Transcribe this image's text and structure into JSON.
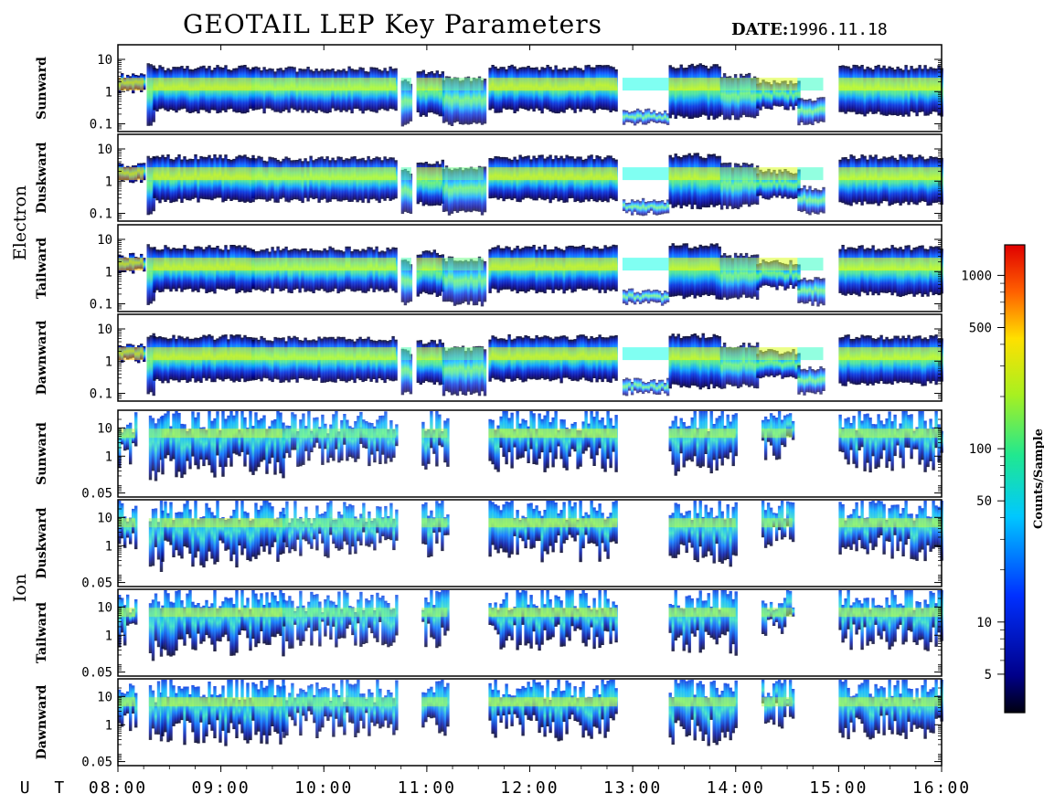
{
  "header": {
    "title": "GEOTAIL LEP Key Parameters",
    "date_label": "DATE:",
    "date_value": "1996.11.18"
  },
  "chart_data": {
    "type": "heatmap",
    "time_axis": {
      "label": "U T",
      "range": [
        "08:00",
        "16:00"
      ],
      "ticks": [
        "08:00",
        "09:00",
        "10:00",
        "11:00",
        "12:00",
        "13:00",
        "14:00",
        "15:00",
        "16:00"
      ]
    },
    "groups": [
      {
        "name": "Electron",
        "y_scale": "log",
        "y_ticks": [
          "10",
          "1",
          "0.1"
        ],
        "panels": [
          "Sunward",
          "Duskward",
          "Tailward",
          "Dawnward"
        ]
      },
      {
        "name": "Ion",
        "y_scale": "log",
        "y_ticks": [
          "10",
          "1",
          "0.05"
        ],
        "panels": [
          "Sunward",
          "Duskward",
          "Tailward",
          "Dawnward"
        ]
      }
    ],
    "colorbar": {
      "label": "Counts/Sample",
      "scale": "log",
      "ticks": [
        "1000",
        "500",
        "100",
        "50",
        "10",
        "5"
      ],
      "range": [
        3,
        1500
      ]
    },
    "electron_activity": [
      {
        "t0": 8.0,
        "t1": 8.25,
        "level": 0.85,
        "band": [
          0.02,
          0.5
        ]
      },
      {
        "t0": 8.28,
        "t1": 8.34,
        "level": 0.55,
        "band": [
          -1,
          0.8
        ]
      },
      {
        "t0": 8.34,
        "t1": 9.3,
        "level": 0.72,
        "band": [
          -0.6,
          0.75
        ]
      },
      {
        "t0": 9.3,
        "t1": 10.7,
        "level": 0.62,
        "band": [
          -0.6,
          0.7
        ]
      },
      {
        "t0": 10.75,
        "t1": 10.85,
        "level": 0.25,
        "band": [
          -1,
          0.3
        ]
      },
      {
        "t0": 10.9,
        "t1": 11.15,
        "level": 0.65,
        "band": [
          -0.7,
          0.6
        ]
      },
      {
        "t0": 11.15,
        "t1": 11.55,
        "level": 0.35,
        "band": [
          -1,
          0.4
        ]
      },
      {
        "t0": 11.6,
        "t1": 12.85,
        "level": 0.72,
        "band": [
          -0.6,
          0.75
        ]
      },
      {
        "t0": 12.9,
        "t1": 13.35,
        "level": 0.12,
        "band": [
          -1,
          -0.6
        ]
      },
      {
        "t0": 13.35,
        "t1": 13.85,
        "level": 0.7,
        "band": [
          -0.8,
          0.8
        ]
      },
      {
        "t0": 13.85,
        "t1": 14.2,
        "level": 0.45,
        "band": [
          -0.8,
          0.5
        ]
      },
      {
        "t0": 14.2,
        "t1": 14.6,
        "level": 0.6,
        "band": [
          -0.5,
          0.3
        ]
      },
      {
        "t0": 14.6,
        "t1": 14.85,
        "level": 0.2,
        "band": [
          -1,
          -0.2
        ]
      },
      {
        "t0": 15.0,
        "t1": 16.0,
        "level": 0.68,
        "band": [
          -0.7,
          0.75
        ]
      }
    ],
    "ion_activity": [
      {
        "t0": 8.0,
        "t1": 8.17,
        "level": 0.55,
        "band": [
          0.0,
          1.2
        ]
      },
      {
        "t0": 8.3,
        "t1": 8.42,
        "level": 0.45,
        "band": [
          -0.5,
          1.2
        ]
      },
      {
        "t0": 8.42,
        "t1": 9.6,
        "level": 0.6,
        "band": [
          -0.3,
          1.3
        ]
      },
      {
        "t0": 9.6,
        "t1": 10.7,
        "level": 0.4,
        "band": [
          0.0,
          1.2
        ]
      },
      {
        "t0": 10.95,
        "t1": 11.2,
        "level": 0.5,
        "band": [
          0.0,
          1.3
        ]
      },
      {
        "t0": 11.6,
        "t1": 12.85,
        "level": 0.6,
        "band": [
          -0.1,
          1.3
        ]
      },
      {
        "t0": 13.35,
        "t1": 14.0,
        "level": 0.55,
        "band": [
          -0.3,
          1.3
        ]
      },
      {
        "t0": 14.25,
        "t1": 14.55,
        "level": 0.5,
        "band": [
          0.3,
          1.3
        ]
      },
      {
        "t0": 15.0,
        "t1": 16.0,
        "level": 0.55,
        "band": [
          -0.1,
          1.3
        ]
      }
    ]
  }
}
